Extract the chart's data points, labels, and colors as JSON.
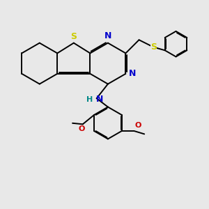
{
  "bg_color": "#e8e8e8",
  "bond_color": "#000000",
  "S_color": "#cccc00",
  "N_color": "#0000cc",
  "O_color": "#cc0000",
  "NH_color": "#008888",
  "lw": 1.4,
  "dbo": 0.055,
  "xlim": [
    0,
    10
  ],
  "ylim": [
    0,
    10
  ]
}
